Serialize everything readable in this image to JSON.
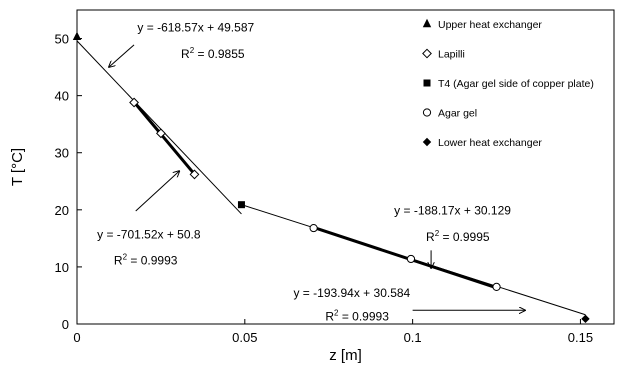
{
  "chart_data": {
    "type": "scatter",
    "xlabel": "z [m]",
    "ylabel": "T [°C]",
    "xlim": [
      0,
      0.16
    ],
    "ylim": [
      0,
      55
    ],
    "xticks": [
      0,
      0.05,
      0.1,
      0.15
    ],
    "xtick_labels": [
      "0",
      "0.05",
      "0.1",
      "0.15"
    ],
    "yticks": [
      0,
      10,
      20,
      30,
      40,
      50
    ],
    "ytick_labels": [
      "0",
      "10",
      "20",
      "30",
      "40",
      "50"
    ],
    "grid": false,
    "legend_placement": "top-right",
    "series": [
      {
        "name": "Upper heat exchanger",
        "marker": "triangle-filled",
        "points": [
          [
            0,
            50.3
          ]
        ]
      },
      {
        "name": "Lapilli",
        "marker": "diamond-open",
        "points": [
          [
            0.017,
            38.8
          ],
          [
            0.025,
            33.4
          ],
          [
            0.035,
            26.2
          ]
        ]
      },
      {
        "name": "T4 (Agar gel side of copper plate)",
        "marker": "square-filled",
        "points": [
          [
            0.049,
            20.9
          ]
        ]
      },
      {
        "name": "Agar gel",
        "marker": "circle-open",
        "points": [
          [
            0.0705,
            16.8
          ],
          [
            0.0995,
            11.4
          ],
          [
            0.125,
            6.5
          ]
        ]
      },
      {
        "name": "Lower heat exchanger",
        "marker": "diamond-filled",
        "points": [
          [
            0.1515,
            0.9
          ]
        ]
      }
    ],
    "fit_lines": [
      {
        "slope": -618.57,
        "intercept": 49.587,
        "x_range": [
          0,
          0.049
        ],
        "width": 1
      },
      {
        "slope": -701.52,
        "intercept": 50.8,
        "x_range": [
          0.017,
          0.035
        ],
        "width": 3
      },
      {
        "slope": -188.17,
        "intercept": 30.129,
        "x_range": [
          0.049,
          0.1515
        ],
        "width": 1
      },
      {
        "slope": -193.94,
        "intercept": 30.584,
        "x_range": [
          0.0705,
          0.125
        ],
        "width": 3
      }
    ],
    "annotations": [
      {
        "equation": "y = -618.57x + 49.587",
        "r2_label": "R",
        "r2_sup": "2",
        "r2_value": " = 0.9855",
        "eq_at": [
          0.018,
          51.2
        ],
        "r2_at": [
          0.031,
          46.6
        ],
        "arrow_from": [
          0.017,
          48.9
        ],
        "arrow_to": [
          0.0095,
          45.0
        ]
      },
      {
        "equation": "y = -701.52x + 50.8",
        "r2_label": "R",
        "r2_sup": "2",
        "r2_value": " = 0.9993",
        "eq_at": [
          0.006,
          15.0
        ],
        "r2_at": [
          0.011,
          10.4
        ],
        "arrow_from": [
          0.0175,
          19.8
        ],
        "arrow_to": [
          0.0305,
          26.8
        ]
      },
      {
        "equation": "y = -188.17x + 30.129",
        "r2_label": "R",
        "r2_sup": "2",
        "r2_value": " = 0.9995",
        "eq_at": [
          0.0945,
          19.2
        ],
        "r2_at": [
          0.104,
          14.5
        ],
        "arrow_from": [
          0.1055,
          12.9
        ],
        "arrow_to": [
          0.1055,
          9.8
        ]
      },
      {
        "equation": "y = -193.94x + 30.584",
        "r2_label": "R",
        "r2_sup": "2",
        "r2_value": " = 0.9993",
        "eq_at": [
          0.0645,
          4.7
        ],
        "r2_at": [
          0.074,
          0.6
        ],
        "arrow_from": [
          0.1,
          2.4
        ],
        "arrow_to": [
          0.1335,
          2.4
        ]
      }
    ]
  }
}
